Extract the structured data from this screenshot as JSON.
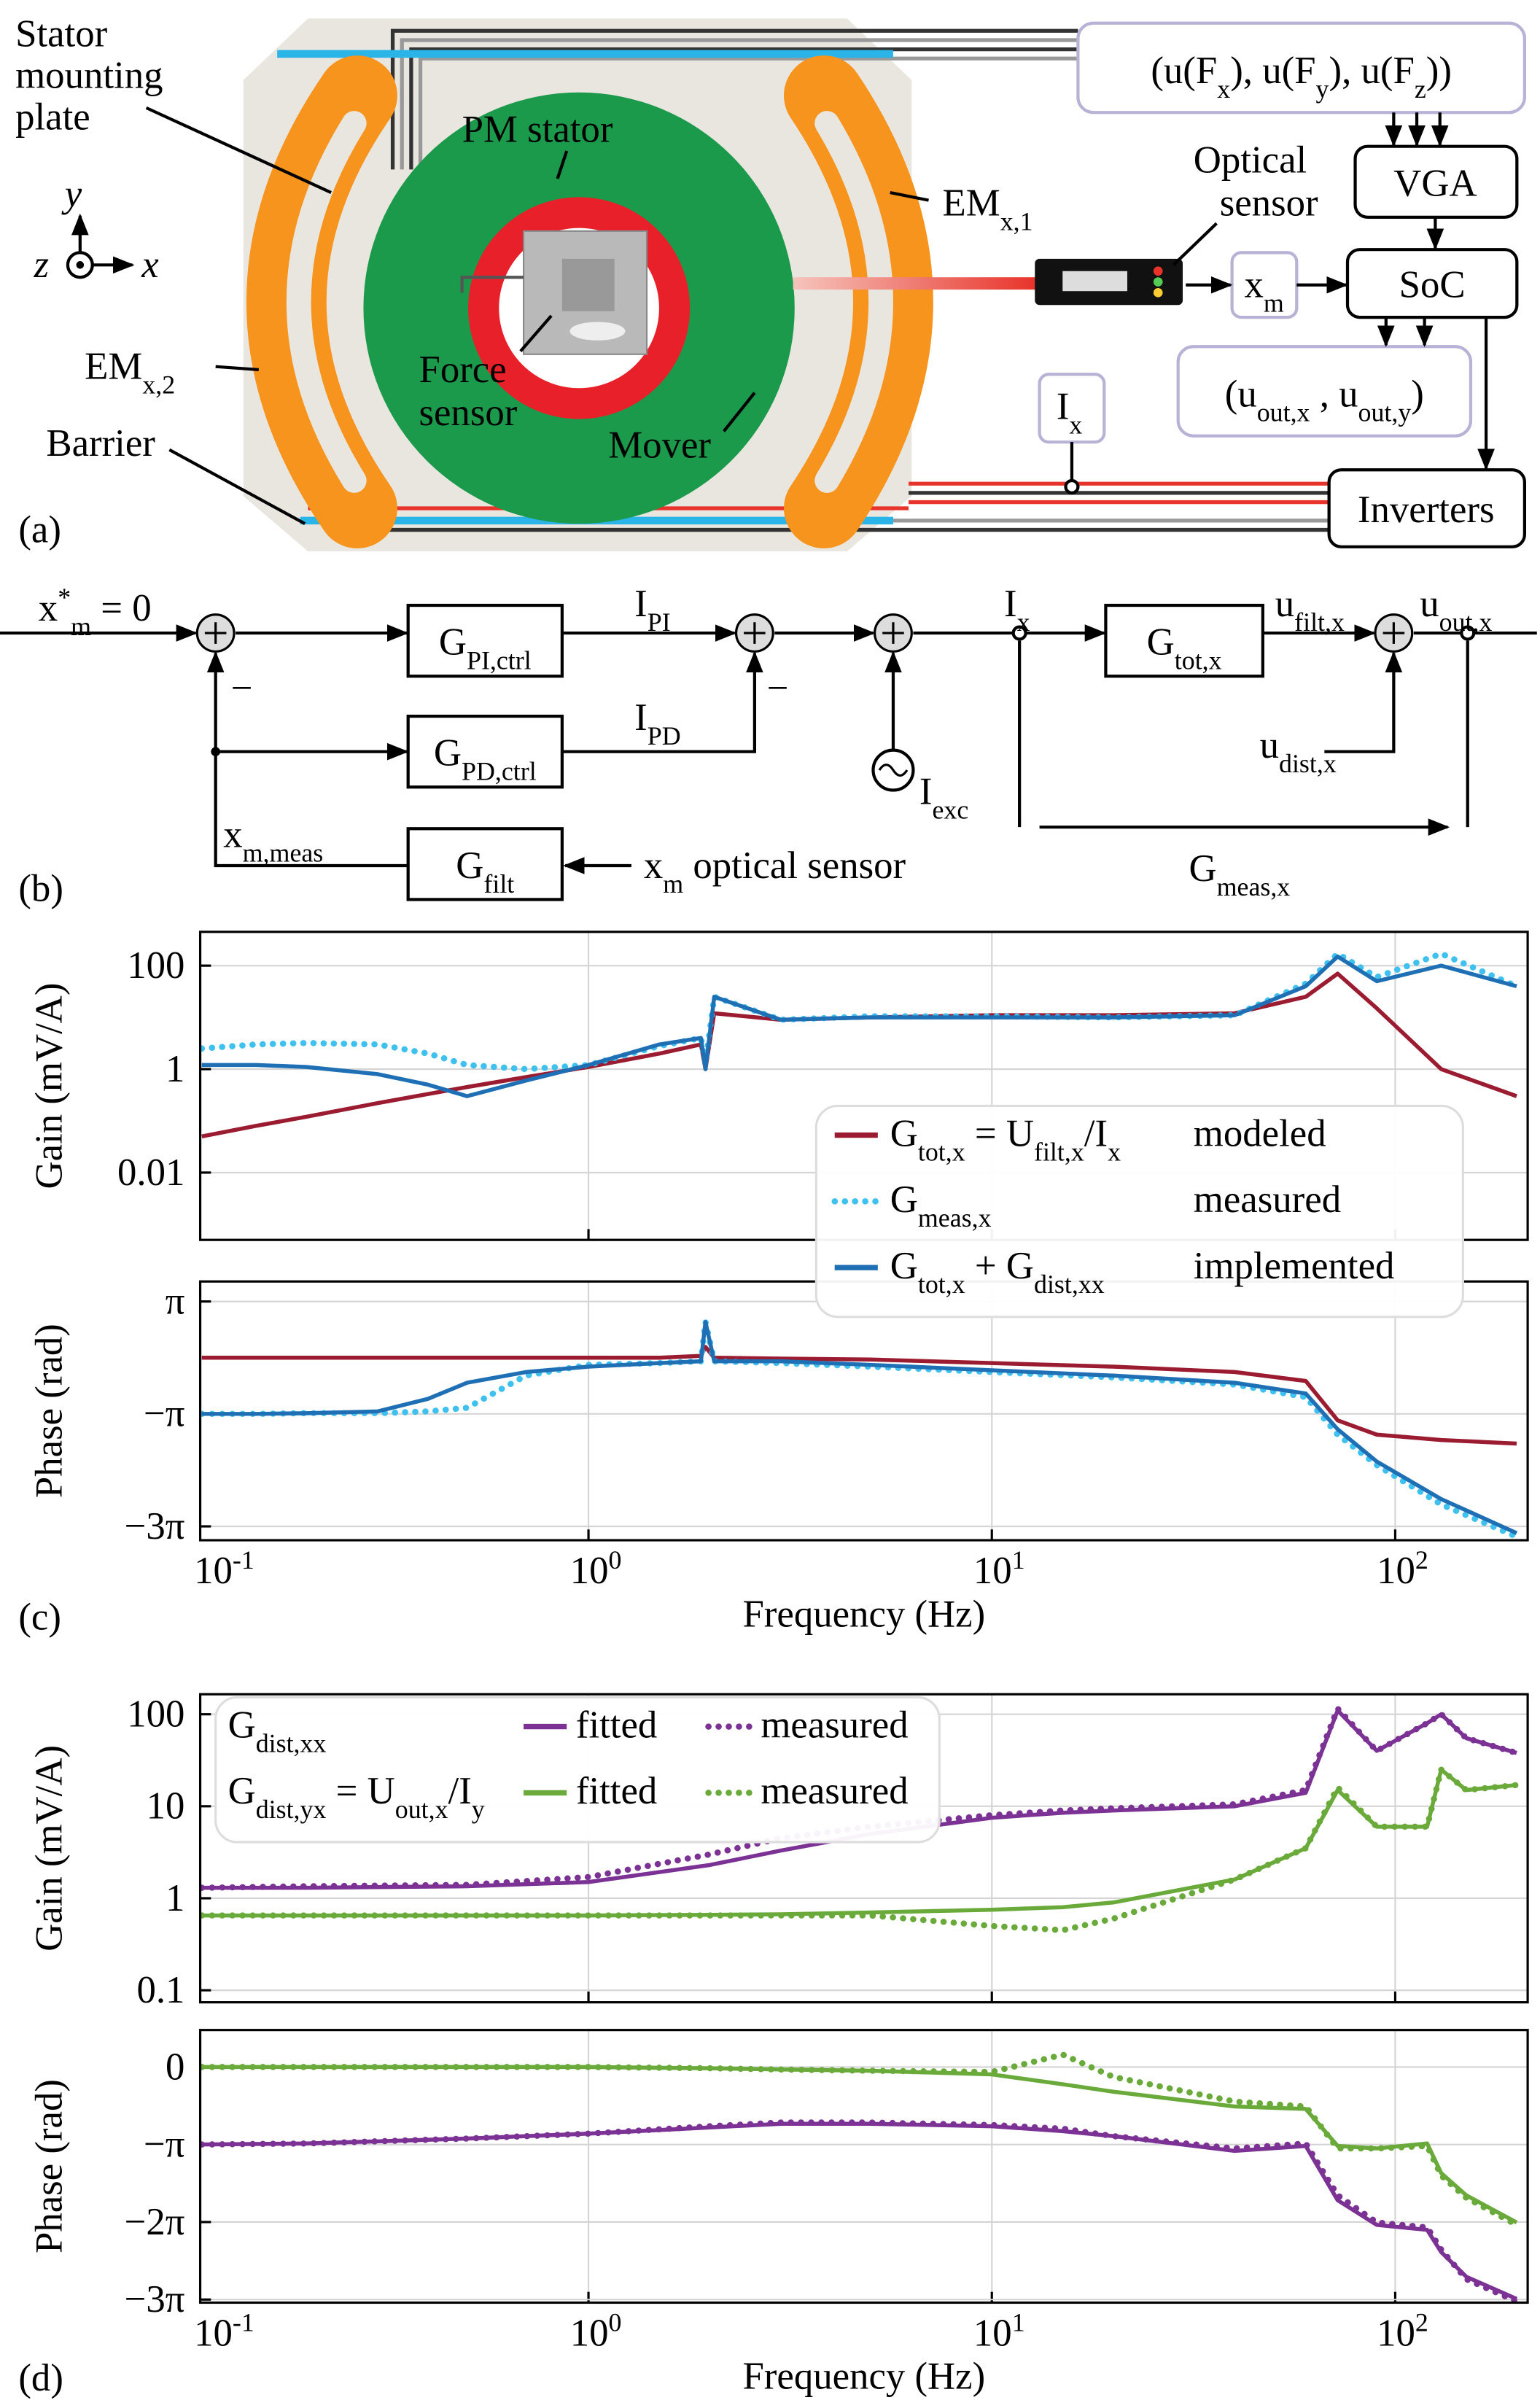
{
  "panel_labels": {
    "a": "(a)",
    "b": "(b)",
    "c": "(c)",
    "d": "(d)"
  },
  "diagram_a": {
    "stator_plate": [
      "Stator",
      "mounting",
      "plate"
    ],
    "pm_stator": "PM stator",
    "em_x1": "EMx,1",
    "em_x2": "EMx,2",
    "force_sensor": [
      "Force",
      "sensor"
    ],
    "mover": "Mover",
    "barrier": "Barrier",
    "optical_sensor": [
      "Optical",
      "sensor"
    ],
    "force_refs": "(u(Fx), u(Fy), u(Fz))",
    "vga": "VGA",
    "soc": "SoC",
    "xm": "xm",
    "ix": "Ix",
    "outputs": "(uout,x , uout,y)",
    "inverters": "Inverters",
    "axes": {
      "y": "y",
      "z": "z",
      "x": "x"
    }
  },
  "diagram_b": {
    "reference": "x*m = 0",
    "g_pi": "GPI,ctrl",
    "i_pi": "IPI",
    "g_pd": "GPD,ctrl",
    "i_pd": "IPD",
    "g_filt": "Gfilt",
    "x_meas": "xm,meas",
    "x_sensor": "xm optical sensor",
    "signs": [
      "−",
      "−"
    ],
    "i_exc": "Iexc",
    "i_x": "Ix",
    "g_tot": "Gtot,x",
    "u_filt": "ufilt,x",
    "u_out": "uout,x",
    "u_dist": "udist,x",
    "g_meas": "Gmeas,x"
  },
  "chart_data": [
    {
      "type": "line",
      "ylabel": "Gain (mV/A)",
      "xscale": "log",
      "yscale": "log",
      "xlim": [
        0.109,
        213
      ],
      "ylim": [
        0.0005,
        450
      ],
      "yticks": [
        0.01,
        1,
        100
      ],
      "grid": true,
      "legend": "lower right",
      "legend_labels": [
        "Gtot,x = Ufilt,x/Ix",
        "Gmeas,x",
        "Gtot,x + Gdist,xx"
      ],
      "x": [
        0.11,
        0.15,
        0.2,
        0.3,
        0.4,
        0.5,
        0.7,
        1,
        1.5,
        1.9,
        1.95,
        2.05,
        3,
        5,
        10,
        20,
        40,
        60,
        72,
        90,
        130,
        200
      ],
      "series": [
        {
          "name": "modeled",
          "color": "#9b1b30",
          "style": "solid",
          "values": [
            0.05,
            0.08,
            0.12,
            0.22,
            0.33,
            0.45,
            0.7,
            1.1,
            2,
            3,
            1,
            12,
            9,
            10,
            11,
            11,
            12,
            25,
            70,
            15,
            1,
            0.3
          ]
        },
        {
          "name": "measured",
          "color": "#3fc1f0",
          "style": "dotted",
          "values": [
            2.5,
            3,
            3.2,
            3,
            2,
            1.2,
            1,
            1.2,
            2.8,
            4,
            1.3,
            25,
            9,
            10.5,
            10.5,
            10,
            11,
            45,
            170,
            60,
            170,
            40
          ]
        },
        {
          "name": "implemented",
          "color": "#1f6fb5",
          "style": "solid",
          "values": [
            1.2,
            1.2,
            1.1,
            0.8,
            0.5,
            0.3,
            0.6,
            1.2,
            3,
            4,
            1,
            25,
            9,
            10,
            10,
            10,
            11,
            40,
            150,
            50,
            100,
            40
          ]
        }
      ]
    },
    {
      "type": "line",
      "ylabel": "Phase (rad)",
      "xlabel": "Frequency (Hz)",
      "xscale": "log",
      "xlim": [
        0.109,
        213
      ],
      "ylim": [
        -10.2,
        4.26
      ],
      "xticks": [
        {
          "value": 0.1,
          "label": "10-1"
        },
        {
          "value": 1,
          "label": "100"
        },
        {
          "value": 10,
          "label": "101"
        },
        {
          "value": 100,
          "label": "102"
        }
      ],
      "yticks": [
        {
          "value": 3.1416,
          "label": "π"
        },
        {
          "value": -3.1416,
          "label": "−π"
        },
        {
          "value": -9.4248,
          "label": "−3π"
        }
      ],
      "grid": true,
      "x": [
        0.11,
        0.15,
        0.2,
        0.3,
        0.4,
        0.5,
        0.7,
        1,
        1.5,
        1.9,
        1.95,
        2.05,
        3,
        5,
        10,
        20,
        40,
        60,
        72,
        90,
        130,
        200
      ],
      "series": [
        {
          "color": "#9b1b30",
          "style": "solid",
          "values": [
            0,
            0,
            0,
            0,
            0,
            0,
            0,
            0,
            0,
            0.1,
            0.6,
            0,
            -0.05,
            -0.1,
            -0.3,
            -0.5,
            -0.8,
            -1.3,
            -3.5,
            -4.3,
            -4.6,
            -4.8
          ]
        },
        {
          "color": "#3fc1f0",
          "style": "dotted",
          "values": [
            -3.14,
            -3.14,
            -3.1,
            -3.1,
            -3.0,
            -2.8,
            -1.0,
            -0.4,
            -0.3,
            -0.2,
            2.0,
            -0.2,
            -0.3,
            -0.5,
            -0.8,
            -1.1,
            -1.5,
            -2.2,
            -4.3,
            -6.0,
            -8.2,
            -10.0
          ]
        },
        {
          "color": "#1f6fb5",
          "style": "solid",
          "values": [
            -3.14,
            -3.14,
            -3.1,
            -3.0,
            -2.3,
            -1.4,
            -0.8,
            -0.5,
            -0.3,
            -0.2,
            2.0,
            -0.2,
            -0.2,
            -0.4,
            -0.7,
            -1.0,
            -1.4,
            -2.0,
            -4.0,
            -5.8,
            -7.9,
            -9.8
          ]
        }
      ]
    },
    {
      "type": "line",
      "ylabel": "Gain (mV/A)",
      "xscale": "log",
      "yscale": "log",
      "xlim": [
        0.109,
        213
      ],
      "ylim": [
        0.074,
        165
      ],
      "yticks": [
        0.1,
        1,
        10,
        100
      ],
      "grid": true,
      "legend": "upper left",
      "legend_labels": [
        "Gdist,xx",
        "Gdist,yx = Uout,x/Iy"
      ],
      "x": [
        0.11,
        0.2,
        0.5,
        1,
        2,
        3,
        5,
        10,
        15,
        20,
        40,
        60,
        72,
        90,
        120,
        130,
        150,
        200
      ],
      "series": [
        {
          "name": "fitted",
          "color": "#7b3294",
          "style": "solid",
          "values": [
            1.3,
            1.3,
            1.35,
            1.5,
            2.3,
            3.3,
            5,
            7.5,
            8.5,
            9,
            10,
            14,
            110,
            40,
            80,
            100,
            55,
            38
          ]
        },
        {
          "name": "measured",
          "color": "#7b3294",
          "style": "dotted",
          "values": [
            1.3,
            1.35,
            1.4,
            1.7,
            3,
            4.5,
            6,
            8,
            9,
            9.5,
            10.5,
            15,
            115,
            40,
            80,
            100,
            55,
            38
          ]
        },
        {
          "name": "fitted",
          "color": "#6aaa3a",
          "style": "solid",
          "values": [
            0.65,
            0.65,
            0.65,
            0.65,
            0.66,
            0.67,
            0.7,
            0.75,
            0.8,
            0.9,
            1.6,
            3.5,
            15,
            6,
            6,
            25,
            15,
            17
          ]
        },
        {
          "name": "measured",
          "color": "#6aaa3a",
          "style": "dotted",
          "values": [
            0.65,
            0.65,
            0.65,
            0.65,
            0.65,
            0.65,
            0.65,
            0.5,
            0.45,
            0.6,
            1.6,
            3.5,
            16,
            6,
            6,
            25,
            15,
            17
          ]
        }
      ]
    },
    {
      "type": "line",
      "ylabel": "Phase (rad)",
      "xlabel": "Frequency (Hz)",
      "xscale": "log",
      "xlim": [
        0.109,
        213
      ],
      "ylim": [
        -9.55,
        1.5
      ],
      "xticks": [
        {
          "value": 0.1,
          "label": "10-1"
        },
        {
          "value": 1,
          "label": "100"
        },
        {
          "value": 10,
          "label": "101"
        },
        {
          "value": 100,
          "label": "102"
        }
      ],
      "yticks": [
        0,
        {
          "value": -3.1416,
          "label": "−π"
        },
        {
          "value": -6.2832,
          "label": "−2π"
        },
        {
          "value": -9.4248,
          "label": "−3π"
        }
      ],
      "grid": true,
      "x": [
        0.11,
        0.2,
        0.5,
        1,
        2,
        3,
        5,
        10,
        15,
        20,
        40,
        60,
        72,
        90,
        120,
        130,
        150,
        200
      ],
      "series": [
        {
          "color": "#7b3294",
          "style": "solid",
          "values": [
            -3.14,
            -3.1,
            -2.9,
            -2.7,
            -2.45,
            -2.3,
            -2.3,
            -2.4,
            -2.6,
            -2.8,
            -3.4,
            -3.2,
            -5.4,
            -6.4,
            -6.6,
            -7.5,
            -8.5,
            -9.4
          ]
        },
        {
          "color": "#7b3294",
          "style": "dotted",
          "values": [
            -3.14,
            -3.1,
            -2.9,
            -2.7,
            -2.4,
            -2.25,
            -2.25,
            -2.35,
            -2.5,
            -2.8,
            -3.3,
            -3.1,
            -5.2,
            -6.3,
            -6.5,
            -7.4,
            -8.6,
            -9.5
          ]
        },
        {
          "color": "#6aaa3a",
          "style": "solid",
          "values": [
            0,
            0,
            0,
            0,
            -0.05,
            -0.1,
            -0.15,
            -0.3,
            -0.7,
            -1.0,
            -1.6,
            -1.7,
            -3.2,
            -3.3,
            -3.1,
            -4.3,
            -5.2,
            -6.3
          ]
        },
        {
          "color": "#6aaa3a",
          "style": "dotted",
          "values": [
            0,
            0,
            0,
            0,
            -0.05,
            -0.1,
            -0.15,
            -0.2,
            0.5,
            -0.4,
            -1.4,
            -1.6,
            -3.3,
            -3.3,
            -3.2,
            -4.4,
            -5.3,
            -6.4
          ]
        }
      ]
    }
  ]
}
